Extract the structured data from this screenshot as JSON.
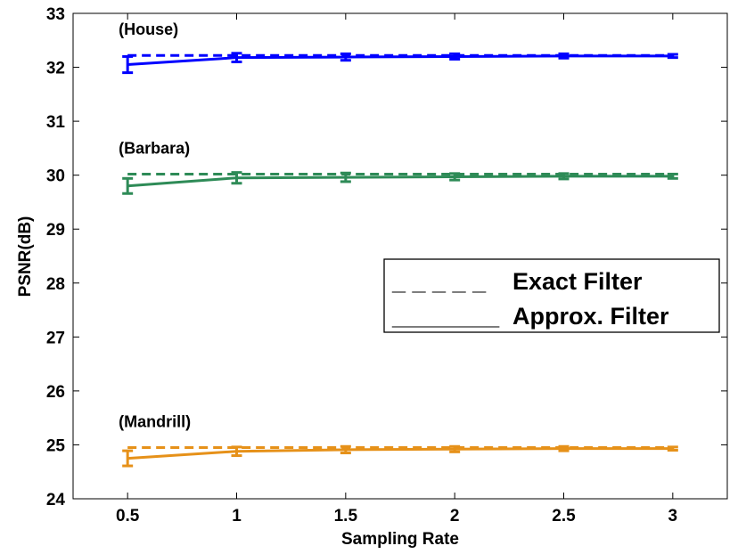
{
  "chart_data": {
    "type": "line",
    "xlabel": "Sampling Rate",
    "ylabel": "PSNR(dB)",
    "xlim": [
      0.25,
      3.25
    ],
    "ylim": [
      24,
      33
    ],
    "xticks": [
      0.5,
      1,
      1.5,
      2,
      2.5,
      3
    ],
    "xtick_labels": [
      "0.5",
      "1",
      "1.5",
      "2",
      "2.5",
      "3"
    ],
    "yticks": [
      24,
      25,
      26,
      27,
      28,
      29,
      30,
      31,
      32,
      33
    ],
    "ytick_labels": [
      "24",
      "25",
      "26",
      "27",
      "28",
      "29",
      "30",
      "31",
      "32",
      "33"
    ],
    "grid": false,
    "legend": {
      "placement": "center-right",
      "entries": [
        {
          "symbol": "_ _ _ _ _",
          "label": "Exact Filter"
        },
        {
          "symbol": "________",
          "label": "Approx. Filter"
        }
      ]
    },
    "x": [
      0.5,
      1,
      1.5,
      2,
      2.5,
      3
    ],
    "groups": [
      {
        "annotation": "(House)",
        "color": "#0000ff",
        "exact": [
          32.22,
          32.22,
          32.22,
          32.22,
          32.22,
          32.22
        ],
        "approx": [
          32.05,
          32.18,
          32.19,
          32.2,
          32.21,
          32.21
        ],
        "approx_err": [
          0.15,
          0.08,
          0.06,
          0.05,
          0.04,
          0.03
        ]
      },
      {
        "annotation": "(Barbara)",
        "color": "#2e8b57",
        "exact": [
          30.02,
          30.02,
          30.02,
          30.02,
          30.02,
          30.02
        ],
        "approx": [
          29.8,
          29.95,
          29.96,
          29.97,
          29.98,
          29.98
        ],
        "approx_err": [
          0.14,
          0.1,
          0.08,
          0.06,
          0.05,
          0.04
        ]
      },
      {
        "annotation": "(Mandrill)",
        "color": "#e69119",
        "exact": [
          24.95,
          24.95,
          24.95,
          24.95,
          24.95,
          24.95
        ],
        "approx": [
          24.75,
          24.88,
          24.91,
          24.92,
          24.93,
          24.93
        ],
        "approx_err": [
          0.14,
          0.08,
          0.06,
          0.05,
          0.04,
          0.03
        ]
      }
    ]
  }
}
